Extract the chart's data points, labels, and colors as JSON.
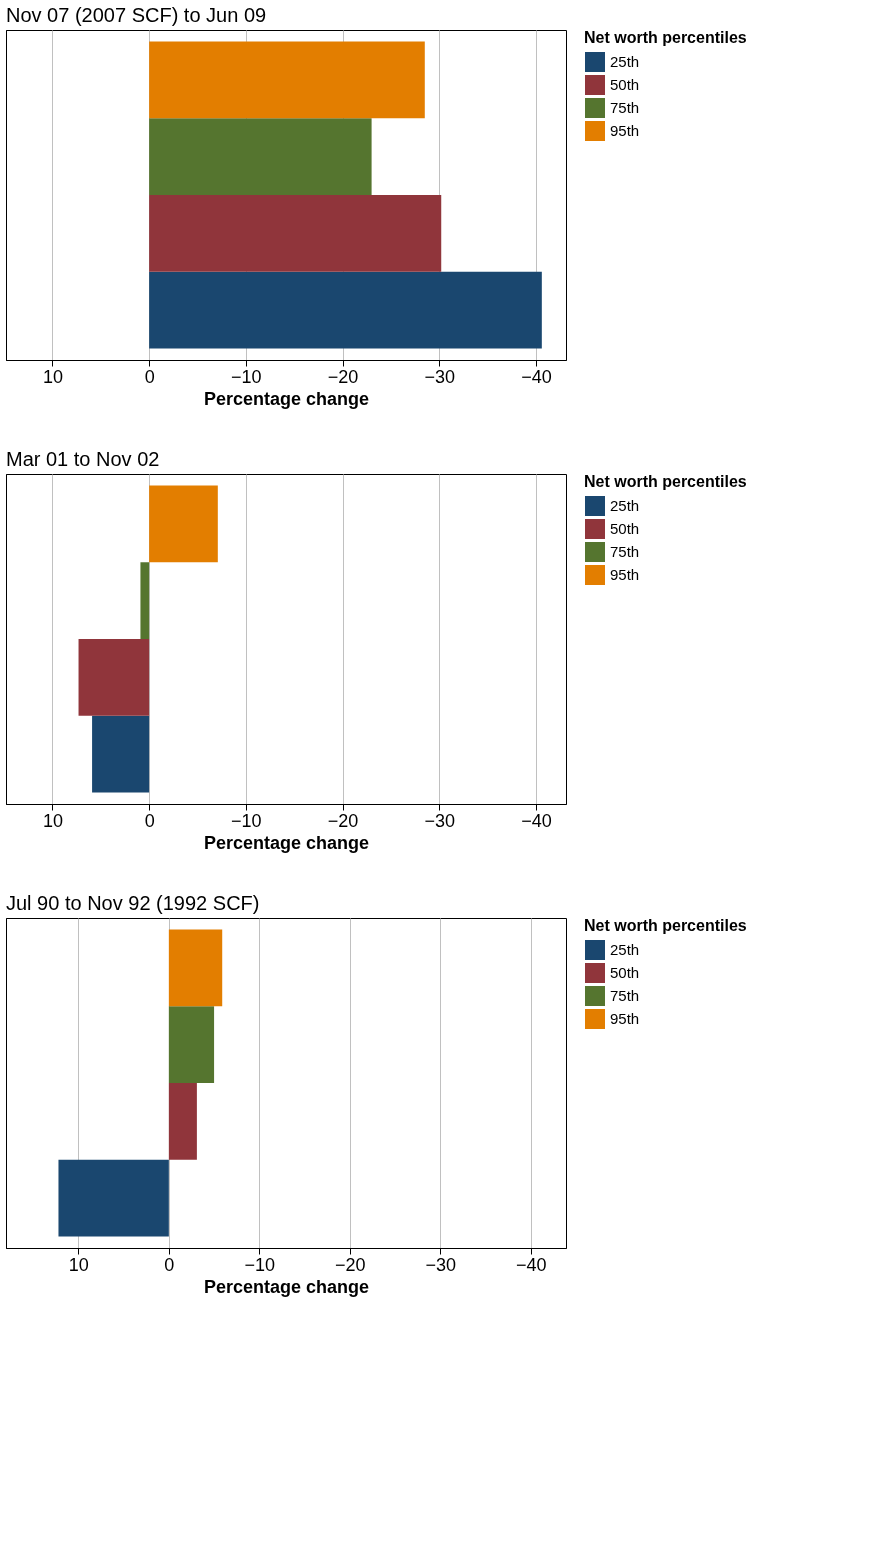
{
  "chart_data": [
    {
      "type": "bar",
      "orientation": "horizontal",
      "title": "Nov 07 (2007 SCF) to Jun 09",
      "xlabel": "Percentage change",
      "legend_title": "Net worth percentiles",
      "legend": "right",
      "grid": "x",
      "categories": [
        null
      ],
      "xlim": [
        14.8,
        -43.1
      ],
      "xticks": [
        10,
        0,
        -10,
        -20,
        -30,
        -40
      ],
      "series": [
        {
          "name": "25th",
          "color": "#1a476f",
          "values": [
            -40.6
          ]
        },
        {
          "name": "50th",
          "color": "#90353b",
          "values": [
            -30.2
          ]
        },
        {
          "name": "75th",
          "color": "#55752f",
          "values": [
            -23.0
          ]
        },
        {
          "name": "95th",
          "color": "#e37e00",
          "values": [
            -28.5
          ]
        }
      ]
    },
    {
      "type": "bar",
      "orientation": "horizontal",
      "title": "Mar 01 to Nov 02",
      "xlabel": "Percentage change",
      "legend_title": "Net worth percentiles",
      "legend": "right",
      "grid": "x",
      "categories": [
        null
      ],
      "xlim": [
        14.8,
        -43.1
      ],
      "xticks": [
        10,
        0,
        -10,
        -20,
        -30,
        -40
      ],
      "series": [
        {
          "name": "25th",
          "color": "#1a476f",
          "values": [
            5.9
          ]
        },
        {
          "name": "50th",
          "color": "#90353b",
          "values": [
            7.3
          ]
        },
        {
          "name": "75th",
          "color": "#55752f",
          "values": [
            0.9
          ]
        },
        {
          "name": "95th",
          "color": "#e37e00",
          "values": [
            -7.1
          ]
        }
      ]
    },
    {
      "type": "bar",
      "orientation": "horizontal",
      "title": "Jul 90 to Nov 92 (1992 SCF)",
      "xlabel": "Percentage change",
      "legend_title": "Net worth percentiles",
      "legend": "right",
      "grid": "x",
      "categories": [
        null
      ],
      "xlim": [
        18.0,
        -43.9
      ],
      "xticks": [
        10,
        0,
        -10,
        -20,
        -30,
        -40
      ],
      "series": [
        {
          "name": "25th",
          "color": "#1a476f",
          "values": [
            12.2
          ]
        },
        {
          "name": "50th",
          "color": "#90353b",
          "values": [
            -3.1
          ]
        },
        {
          "name": "75th",
          "color": "#55752f",
          "values": [
            -5.0
          ]
        },
        {
          "name": "95th",
          "color": "#e37e00",
          "values": [
            -5.9
          ]
        }
      ]
    }
  ]
}
